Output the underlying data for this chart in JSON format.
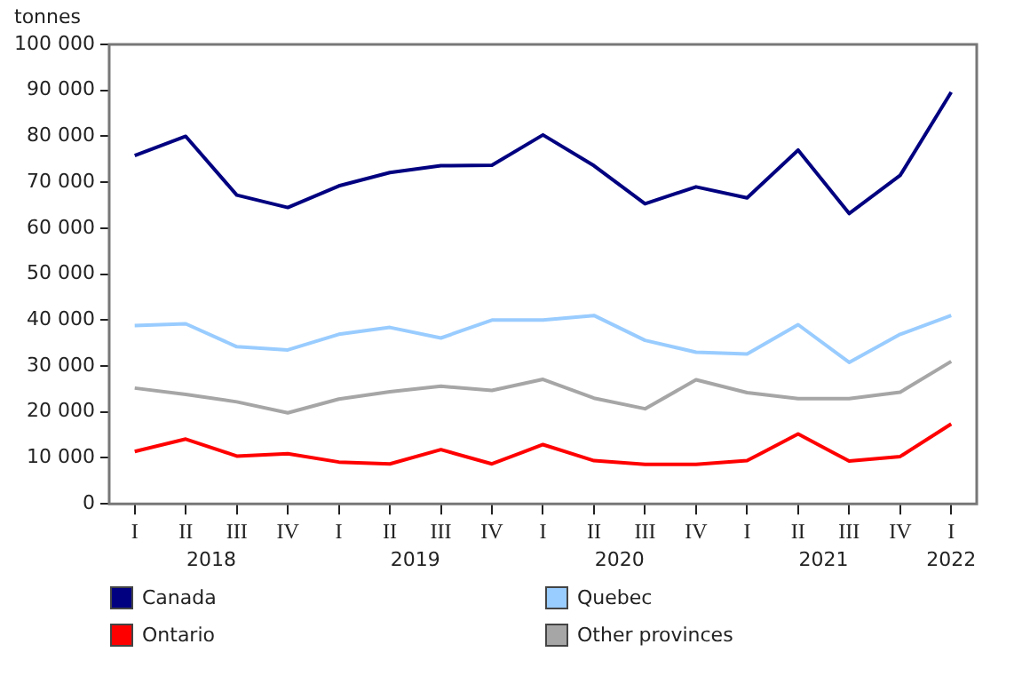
{
  "chart_data": {
    "type": "line",
    "ylabel": "tonnes",
    "categories": [
      "I",
      "II",
      "III",
      "IV",
      "I",
      "II",
      "III",
      "IV",
      "I",
      "II",
      "III",
      "IV",
      "I",
      "II",
      "III",
      "IV",
      "I"
    ],
    "annotations": [
      "2018",
      "2019",
      "2020",
      "2021",
      "2022"
    ],
    "series": [
      {
        "name": "Canada",
        "color": "#000080",
        "values": [
          75800,
          80000,
          67200,
          64500,
          69200,
          72100,
          73600,
          73700,
          80300,
          73600,
          65300,
          69000,
          66600,
          77000,
          63200,
          71500,
          89600
        ]
      },
      {
        "name": "Quebec",
        "color": "#99ccff",
        "values": [
          38800,
          39200,
          34200,
          33500,
          36900,
          38400,
          36100,
          40000,
          40000,
          41000,
          35600,
          33000,
          32600,
          39000,
          30800,
          36900,
          41000
        ]
      },
      {
        "name": "Ontario",
        "color": "#ff0000",
        "values": [
          11400,
          14100,
          10400,
          10900,
          9100,
          8700,
          11800,
          8700,
          12900,
          9400,
          8600,
          8600,
          9400,
          15200,
          9300,
          10300,
          17400
        ]
      },
      {
        "name": "Other provinces",
        "color": "#a6a6a6",
        "values": [
          25200,
          23800,
          22200,
          19800,
          22800,
          24400,
          25600,
          24700,
          27100,
          23000,
          20700,
          27000,
          24200,
          22900,
          22900,
          24300,
          31000
        ]
      }
    ],
    "ylim": [
      0,
      100000
    ],
    "yticks": [
      {
        "value": 0,
        "label": "0"
      },
      {
        "value": 10000,
        "label": "10 000"
      },
      {
        "value": 20000,
        "label": "20 000"
      },
      {
        "value": 30000,
        "label": "30 000"
      },
      {
        "value": 40000,
        "label": "40 000"
      },
      {
        "value": 50000,
        "label": "50 000"
      },
      {
        "value": 60000,
        "label": "60 000"
      },
      {
        "value": 70000,
        "label": "70 000"
      },
      {
        "value": 80000,
        "label": "80 000"
      },
      {
        "value": 90000,
        "label": "90 000"
      },
      {
        "value": 100000,
        "label": "100 000"
      }
    ],
    "grid": false,
    "legend": "bottom",
    "marker": "none",
    "line_style": "solid"
  }
}
